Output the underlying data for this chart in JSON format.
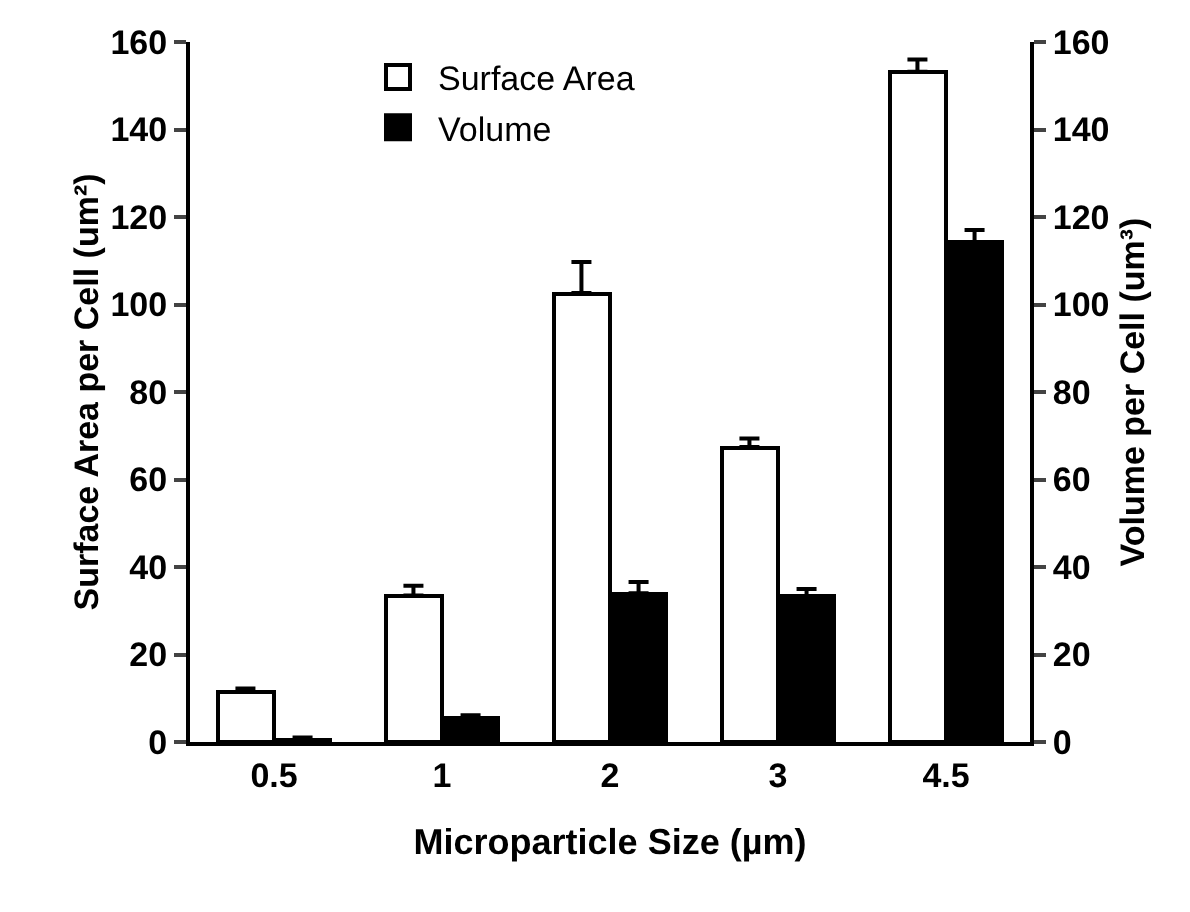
{
  "chart_data": {
    "type": "bar",
    "xlabel": "Microparticle Size (µm)",
    "ylabel": "Surface Area per Cell (um²)",
    "y2label": "Volume per Cell (um³)",
    "categories": [
      "0.5",
      "1",
      "2",
      "3",
      "4.5"
    ],
    "series": [
      {
        "name": "Surface Area",
        "color": "#ffffff",
        "values": [
          11.4,
          33.5,
          102.6,
          67.4,
          153.2
        ],
        "errors": [
          [
            11.4,
            12.2
          ],
          [
            33.5,
            35.7
          ],
          [
            102.6,
            109.7
          ],
          [
            67.4,
            69.4
          ],
          [
            153.2,
            156
          ]
        ]
      },
      {
        "name": "Volume",
        "color": "#000000",
        "axis": "y2",
        "values": [
          0.5,
          5.3,
          34,
          33.2,
          114.3
        ],
        "errors": [
          [
            0.5,
            1
          ],
          [
            5.3,
            6.1
          ],
          [
            34,
            36.6
          ],
          [
            33.2,
            35
          ],
          [
            114.3,
            117
          ]
        ]
      }
    ],
    "ylim": [
      0,
      160
    ],
    "yticks": [
      0,
      20,
      40,
      60,
      80,
      100,
      120,
      140,
      160
    ],
    "y2lim": [
      0,
      160
    ],
    "y2ticks": [
      0,
      20,
      40,
      60,
      80,
      100,
      120,
      140,
      160
    ],
    "grid": false,
    "legend": "top left"
  }
}
